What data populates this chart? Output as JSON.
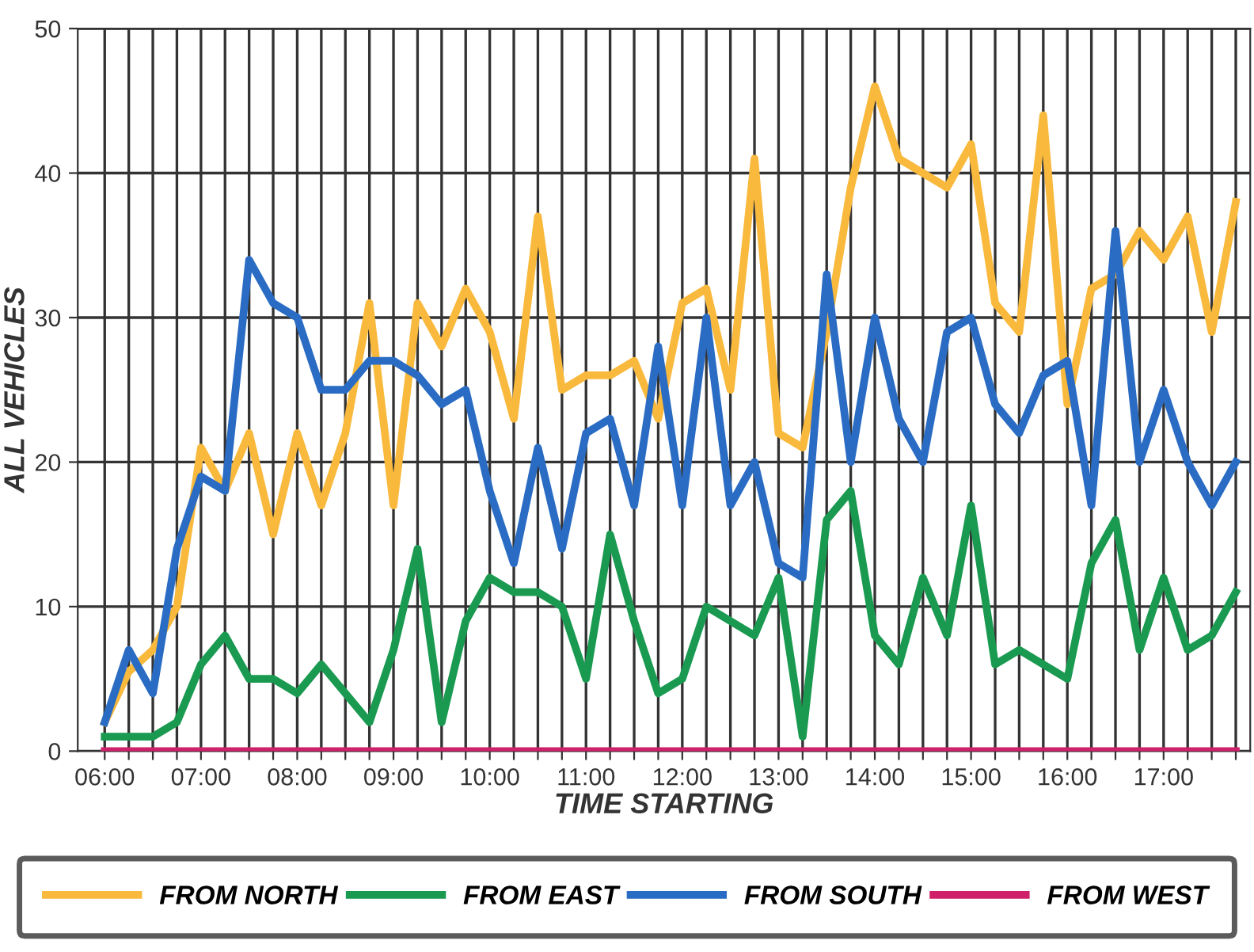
{
  "chart_data": {
    "type": "line",
    "xlabel": "TIME STARTING",
    "ylabel": "ALL VEHICLES",
    "x": [
      6.0,
      6.25,
      6.5,
      6.75,
      7.0,
      7.25,
      7.5,
      7.75,
      8.0,
      8.25,
      8.5,
      8.75,
      9.0,
      9.25,
      9.5,
      9.75,
      10.0,
      10.25,
      10.5,
      10.75,
      11.0,
      11.25,
      11.5,
      11.75,
      12.0,
      12.25,
      12.5,
      12.75,
      13.0,
      13.25,
      13.5,
      13.75,
      14.0,
      14.25,
      14.5,
      14.75,
      15.0,
      15.25,
      15.5,
      15.75,
      16.0,
      16.25,
      16.5,
      16.75,
      17.0,
      17.25,
      17.5,
      17.75
    ],
    "series": [
      {
        "name": "FROM NORTH",
        "color": "#f9b93c",
        "values": [
          2,
          5.5,
          7,
          10,
          21,
          18,
          22,
          15,
          22,
          17,
          22,
          31,
          17,
          31,
          28,
          32,
          29,
          23,
          37,
          25,
          26,
          26,
          27,
          23,
          31,
          32,
          25,
          41,
          22,
          21,
          29,
          39,
          46,
          41,
          40,
          39,
          42,
          31,
          29,
          44,
          24,
          32,
          33,
          36,
          34,
          37,
          29,
          38
        ]
      },
      {
        "name": "FROM EAST",
        "color": "#1a9a50",
        "values": [
          1,
          1,
          1,
          2,
          6,
          8,
          5,
          5,
          4,
          6,
          4,
          2,
          7,
          14,
          2,
          9,
          12,
          11,
          11,
          10,
          5,
          15,
          9,
          4,
          5,
          10,
          9,
          8,
          12,
          1,
          16,
          18,
          8,
          6,
          12,
          8,
          17,
          6,
          7,
          6,
          5,
          13,
          16,
          7,
          12,
          7,
          8,
          11
        ]
      },
      {
        "name": "FROM SOUTH",
        "color": "#2a6cc4",
        "values": [
          2,
          7,
          4,
          14,
          19,
          18,
          34,
          31,
          30,
          25,
          25,
          27,
          27,
          26,
          24,
          25,
          18,
          13,
          21,
          14,
          22,
          23,
          17,
          28,
          17,
          30,
          17,
          20,
          13,
          12,
          33,
          20,
          30,
          23,
          20,
          29,
          30,
          24,
          22,
          26,
          27,
          17,
          36,
          20,
          25,
          20,
          17,
          20
        ]
      },
      {
        "name": "FROM WEST",
        "color": "#d0206a",
        "values": [
          0,
          0,
          0,
          0,
          0,
          0,
          0,
          0,
          0,
          0,
          0,
          0,
          0,
          0,
          0,
          0,
          0,
          0,
          0,
          0,
          0,
          0,
          0,
          0,
          0,
          0,
          0,
          0,
          0,
          0,
          0,
          0,
          0,
          0,
          0,
          0,
          0,
          0,
          0,
          0,
          0,
          0,
          0,
          0,
          0,
          0,
          0,
          0
        ]
      }
    ],
    "xlim": [
      5.72,
      17.9
    ],
    "ylim": [
      0,
      50
    ],
    "yticks": [
      0,
      10,
      20,
      30,
      40,
      50
    ],
    "xticks": [
      {
        "value": 6,
        "label": "06:00"
      },
      {
        "value": 6.25,
        "label": null
      },
      {
        "value": 6.5,
        "label": null
      },
      {
        "value": 6.75,
        "label": null
      },
      {
        "value": 7,
        "label": "07:00"
      },
      {
        "value": 7.25,
        "label": null
      },
      {
        "value": 7.5,
        "label": null
      },
      {
        "value": 7.75,
        "label": null
      },
      {
        "value": 8,
        "label": "08:00"
      },
      {
        "value": 8.25,
        "label": null
      },
      {
        "value": 8.5,
        "label": null
      },
      {
        "value": 8.75,
        "label": null
      },
      {
        "value": 9,
        "label": "09:00"
      },
      {
        "value": 9.25,
        "label": null
      },
      {
        "value": 9.5,
        "label": null
      },
      {
        "value": 9.75,
        "label": null
      },
      {
        "value": 10,
        "label": "10:00"
      },
      {
        "value": 10.25,
        "label": null
      },
      {
        "value": 10.5,
        "label": null
      },
      {
        "value": 10.75,
        "label": null
      },
      {
        "value": 11,
        "label": "11:00"
      },
      {
        "value": 11.25,
        "label": null
      },
      {
        "value": 11.5,
        "label": null
      },
      {
        "value": 11.75,
        "label": null
      },
      {
        "value": 12,
        "label": "12:00"
      },
      {
        "value": 12.25,
        "label": null
      },
      {
        "value": 12.5,
        "label": null
      },
      {
        "value": 12.75,
        "label": null
      },
      {
        "value": 13,
        "label": "13:00"
      },
      {
        "value": 13.25,
        "label": null
      },
      {
        "value": 13.5,
        "label": null
      },
      {
        "value": 13.75,
        "label": null
      },
      {
        "value": 14,
        "label": "14:00"
      },
      {
        "value": 14.25,
        "label": null
      },
      {
        "value": 14.5,
        "label": null
      },
      {
        "value": 14.75,
        "label": null
      },
      {
        "value": 15,
        "label": "15:00"
      },
      {
        "value": 15.25,
        "label": null
      },
      {
        "value": 15.5,
        "label": null
      },
      {
        "value": 15.75,
        "label": null
      },
      {
        "value": 16,
        "label": "16:00"
      },
      {
        "value": 16.25,
        "label": null
      },
      {
        "value": 16.5,
        "label": null
      },
      {
        "value": 16.75,
        "label": null
      },
      {
        "value": 17,
        "label": "17:00"
      },
      {
        "value": 17.25,
        "label": null
      },
      {
        "value": 17.5,
        "label": null
      },
      {
        "value": 17.75,
        "label": null
      }
    ],
    "grid": true,
    "legend": "bottom",
    "marker": "none",
    "line_style": "solid"
  }
}
